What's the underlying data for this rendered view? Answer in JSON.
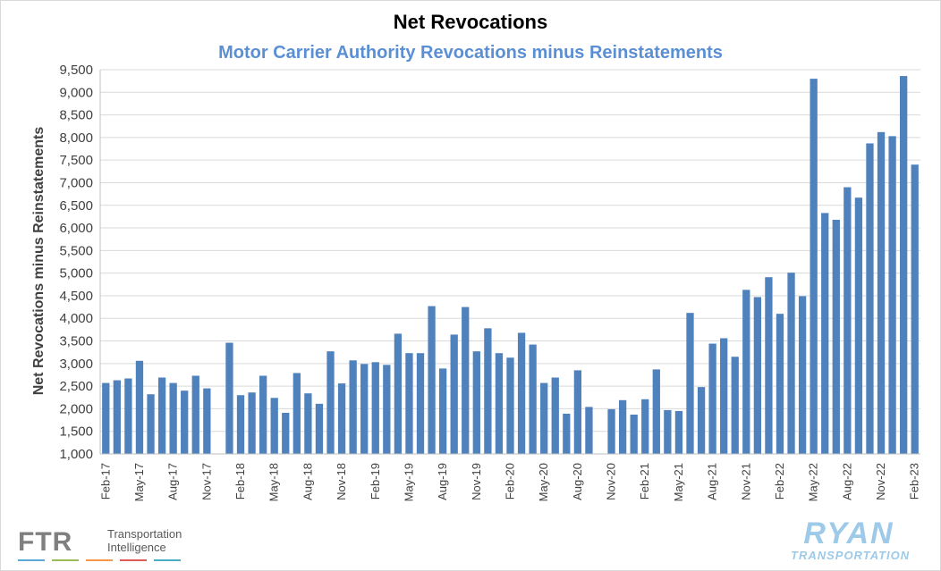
{
  "colors": {
    "bar": "#4f81bd",
    "subtitle": "#5b8fd4",
    "grid": "#d9d9d9",
    "ftr_gray": "#7f7f7f",
    "ryan_blue": "#9ccae8"
  },
  "logos": {
    "ftr": {
      "letters": "FTR",
      "line1": "Transportation",
      "line2": "Intelligence"
    },
    "ryan": {
      "main": "RYAN",
      "sub": "TRANSPORTATION"
    }
  },
  "chart_data": {
    "type": "bar",
    "title": "Net Revocations",
    "subtitle": "Motor Carrier Authority Revocations minus Reinstatements",
    "xlabel": "",
    "ylabel": "Net Revocations minus Reinstatements",
    "ylim": [
      1000,
      9500
    ],
    "ytick_step": 500,
    "grid": true,
    "legend": "none",
    "categories": [
      "Feb-17",
      "Mar-17",
      "Apr-17",
      "May-17",
      "Jun-17",
      "Jul-17",
      "Aug-17",
      "Sep-17",
      "Oct-17",
      "Nov-17",
      "Dec-17",
      "Jan-18",
      "Feb-18",
      "Mar-18",
      "Apr-18",
      "May-18",
      "Jun-18",
      "Jul-18",
      "Aug-18",
      "Sep-18",
      "Oct-18",
      "Nov-18",
      "Dec-18",
      "Jan-19",
      "Feb-19",
      "Mar-19",
      "Apr-19",
      "May-19",
      "Jun-19",
      "Jul-19",
      "Aug-19",
      "Sep-19",
      "Oct-19",
      "Nov-19",
      "Dec-19",
      "Jan-20",
      "Feb-20",
      "Mar-20",
      "Apr-20",
      "May-20",
      "Jun-20",
      "Jul-20",
      "Aug-20",
      "Sep-20",
      "Oct-20",
      "Nov-20",
      "Dec-20",
      "Jan-21",
      "Feb-21",
      "Mar-21",
      "Apr-21",
      "May-21",
      "Jun-21",
      "Jul-21",
      "Aug-21",
      "Sep-21",
      "Oct-21",
      "Nov-21",
      "Dec-21",
      "Jan-22",
      "Feb-22",
      "Mar-22",
      "Apr-22",
      "May-22",
      "Jun-22",
      "Jul-22",
      "Aug-22",
      "Sep-22",
      "Oct-22",
      "Nov-22",
      "Dec-22",
      "Jan-23",
      "Feb-23"
    ],
    "tick_labels": [
      "Feb-17",
      "May-17",
      "Aug-17",
      "Nov-17",
      "Feb-18",
      "May-18",
      "Aug-18",
      "Nov-18",
      "Feb-19",
      "May-19",
      "Aug-19",
      "Nov-19",
      "Feb-20",
      "May-20",
      "Aug-20",
      "Nov-20",
      "Feb-21",
      "May-21",
      "Aug-21",
      "Nov-21",
      "Feb-22",
      "May-22",
      "Aug-22",
      "Nov-22",
      "Feb-23"
    ],
    "values": [
      2570,
      2630,
      2670,
      3060,
      2320,
      2690,
      2570,
      2400,
      2730,
      2450,
      1000,
      3460,
      2300,
      2360,
      2730,
      2240,
      1910,
      2790,
      2340,
      2110,
      3270,
      2560,
      3070,
      2990,
      3030,
      2970,
      3660,
      3230,
      3230,
      4270,
      2890,
      3640,
      4250,
      3270,
      3780,
      3230,
      3130,
      3680,
      3420,
      2570,
      2690,
      1890,
      2850,
      2040,
      1010,
      1990,
      2190,
      1870,
      2210,
      2870,
      1970,
      1950,
      4120,
      2480,
      3440,
      3560,
      3150,
      4630,
      4470,
      4910,
      4100,
      5010,
      4490,
      9300,
      6330,
      6180,
      6900,
      6670,
      7870,
      8120,
      8030,
      9360,
      7400
    ]
  }
}
